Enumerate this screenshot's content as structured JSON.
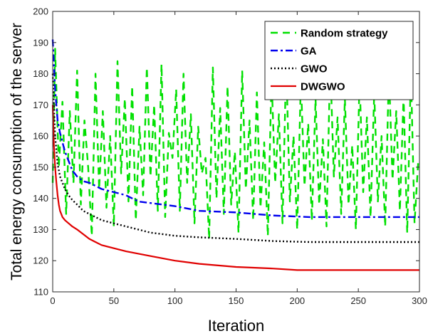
{
  "chart_data": {
    "type": "line",
    "title": "",
    "xlabel": "Iteration",
    "ylabel": "Total energy consumption of the server",
    "xlim": [
      0,
      300
    ],
    "ylim": [
      110,
      200
    ],
    "xticks": [
      0,
      50,
      100,
      150,
      200,
      250,
      300
    ],
    "yticks": [
      110,
      120,
      130,
      140,
      150,
      160,
      170,
      180,
      190,
      200
    ],
    "grid": false,
    "legend_position": "top-right",
    "series": [
      {
        "name": "Random strategy",
        "color": "#00e000",
        "style": "dashed",
        "x": [
          0,
          2,
          5,
          8,
          11,
          14,
          17,
          20,
          23,
          26,
          29,
          32,
          35,
          38,
          41,
          44,
          47,
          50,
          53,
          56,
          59,
          62,
          65,
          68,
          71,
          74,
          77,
          80,
          83,
          86,
          89,
          92,
          95,
          98,
          101,
          104,
          107,
          110,
          113,
          116,
          119,
          122,
          125,
          128,
          131,
          134,
          137,
          140,
          143,
          146,
          149,
          152,
          155,
          158,
          161,
          164,
          167,
          170,
          173,
          176,
          179,
          182,
          185,
          188,
          191,
          194,
          197,
          200,
          203,
          206,
          209,
          212,
          215,
          218,
          221,
          224,
          227,
          230,
          233,
          236,
          239,
          242,
          245,
          248,
          251,
          254,
          257,
          260,
          263,
          266,
          269,
          272,
          275,
          278,
          281,
          284,
          287,
          290,
          293,
          296,
          299
        ],
        "values": [
          145,
          188,
          150,
          171,
          135,
          168,
          145,
          181,
          138,
          165,
          150,
          128,
          180,
          143,
          168,
          137,
          160,
          131,
          184,
          148,
          172,
          139,
          176,
          133,
          163,
          141,
          182,
          147,
          170,
          136,
          183,
          134,
          161,
          153,
          175,
          136,
          180,
          145,
          167,
          132,
          163,
          148,
          153,
          127,
          182,
          140,
          169,
          135,
          176,
          138,
          155,
          129,
          181,
          143,
          165,
          133,
          174,
          137,
          158,
          128,
          179,
          145,
          167,
          132,
          184,
          139,
          160,
          130,
          178,
          144,
          164,
          133,
          172,
          138,
          159,
          131,
          184,
          147,
          166,
          135,
          172,
          138,
          157,
          130,
          178,
          142,
          166,
          134,
          174,
          139,
          160,
          131,
          181,
          146,
          168,
          136,
          173,
          129,
          181,
          132,
          152
        ]
      },
      {
        "name": "GA",
        "color": "#0000ee",
        "style": "dashdot",
        "x": [
          0,
          2,
          4,
          6,
          8,
          10,
          13,
          16,
          20,
          25,
          30,
          40,
          50,
          60,
          70,
          80,
          100,
          120,
          150,
          180,
          210,
          240,
          270,
          300
        ],
        "values": [
          191,
          175,
          165,
          161,
          158,
          155,
          152,
          149,
          147,
          145.5,
          145,
          143,
          142,
          141,
          139,
          138.5,
          137.5,
          136,
          135.5,
          134.5,
          134,
          134,
          134,
          134
        ]
      },
      {
        "name": "GWO",
        "color": "#000000",
        "style": "dotted",
        "x": [
          0,
          2,
          4,
          6,
          8,
          10,
          13,
          16,
          20,
          25,
          30,
          40,
          50,
          60,
          70,
          80,
          100,
          120,
          150,
          180,
          210,
          240,
          270,
          300
        ],
        "values": [
          180,
          160,
          151,
          147,
          145,
          143,
          141,
          139.5,
          138,
          136,
          135,
          133,
          132,
          131,
          130,
          129,
          128,
          127.5,
          127,
          126.3,
          126,
          126,
          126,
          126
        ]
      },
      {
        "name": "DWGWO",
        "color": "#e00000",
        "style": "solid",
        "x": [
          0,
          1,
          2,
          3,
          4,
          5,
          6,
          8,
          10,
          13,
          16,
          20,
          25,
          30,
          35,
          40,
          50,
          60,
          80,
          100,
          120,
          150,
          180,
          200,
          240,
          270,
          300
        ],
        "values": [
          170,
          157,
          150,
          145,
          141,
          138,
          136,
          134,
          133,
          132,
          131,
          130,
          128.5,
          127,
          126,
          125,
          124,
          123,
          121.5,
          120,
          119,
          118,
          117.5,
          117,
          117,
          117,
          117
        ]
      }
    ]
  }
}
